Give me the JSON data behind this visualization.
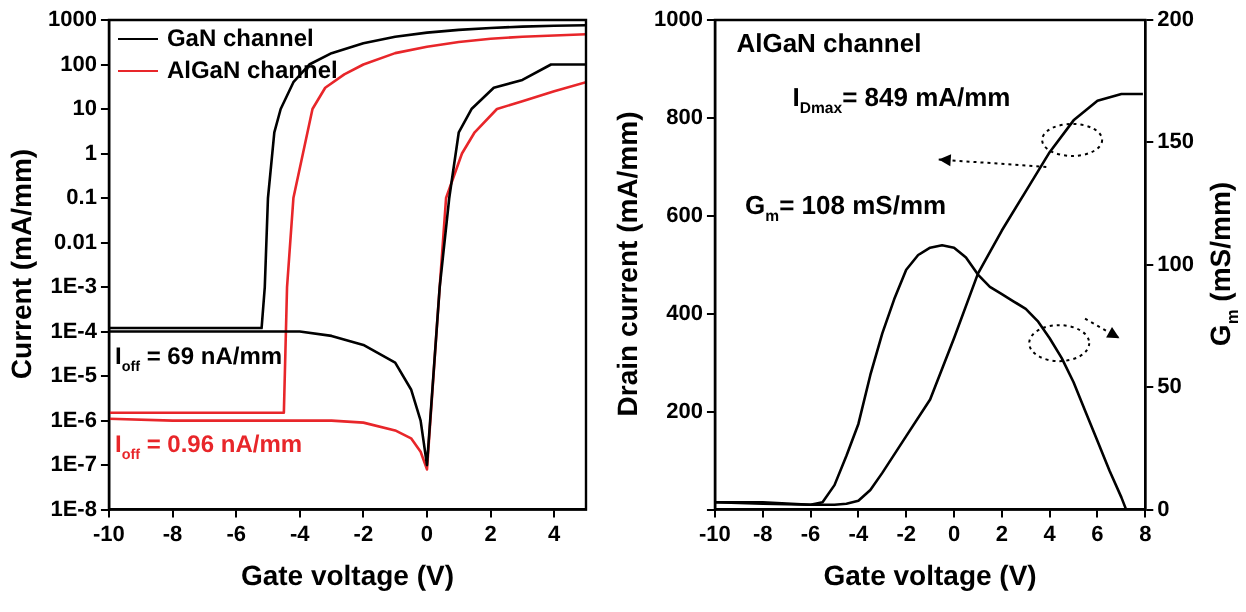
{
  "chart_data": [
    {
      "type": "line",
      "xlabel": "Gate voltage (V)",
      "ylabel": "Current (mA/mm)",
      "log": "y",
      "grid": false,
      "legend": "top left",
      "xlim": [
        -10,
        5
      ],
      "xticks": [
        -10,
        -8,
        -6,
        -4,
        -2,
        0,
        2,
        4
      ],
      "ylim": [
        1e-08,
        1000
      ],
      "yticks": [
        1000,
        100,
        10,
        1,
        0.1,
        0.01,
        {
          "value": 0.001,
          "label": "1E-3"
        },
        {
          "value": 0.0001,
          "label": "1E-4"
        },
        {
          "value": 1e-05,
          "label": "1E-5"
        },
        {
          "value": 1e-06,
          "label": "1E-6"
        },
        {
          "value": 1e-07,
          "label": "1E-7"
        },
        {
          "value": 1e-08,
          "label": "1E-8"
        }
      ],
      "series": [
        {
          "name": "GaN channel",
          "color": "#000000",
          "x": [
            -10,
            -8,
            -6,
            -5.2,
            -5.1,
            -5.0,
            -4.8,
            -4.6,
            -4.2,
            -3.7,
            -3,
            -2,
            -1,
            0,
            1,
            2,
            3,
            4,
            5
          ],
          "values": [
            0.00012,
            0.00012,
            0.00012,
            0.00012,
            0.001,
            0.1,
            3,
            10,
            40,
            100,
            180,
            300,
            420,
            520,
            600,
            660,
            710,
            740,
            760
          ]
        },
        {
          "color": "#000000",
          "x": [
            -10,
            -8,
            -6,
            -4,
            -3,
            -2,
            -1,
            -0.5,
            -0.2,
            0,
            0.4,
            0.7,
            1.0,
            1.4,
            2.1,
            3,
            3.9,
            5
          ],
          "values": [
            0.0001,
            0.0001,
            0.0001,
            0.0001,
            8e-05,
            5e-05,
            2e-05,
            5e-06,
            1e-06,
            1e-07,
            0.001,
            0.1,
            3,
            10,
            30,
            45,
            100,
            100
          ]
        },
        {
          "name": "AlGaN channel",
          "color": "#e8262a",
          "x": [
            -10,
            -8,
            -6,
            -4.5,
            -4.4,
            -4.2,
            -3.9,
            -3.6,
            -3.2,
            -2.6,
            -2,
            -1,
            0,
            1,
            2,
            3,
            4,
            5
          ],
          "values": [
            1.5e-06,
            1.5e-06,
            1.5e-06,
            1.5e-06,
            0.001,
            0.1,
            1,
            10,
            30,
            60,
            100,
            180,
            250,
            320,
            380,
            420,
            450,
            480
          ]
        },
        {
          "color": "#e8262a",
          "x": [
            -10,
            -8,
            -5,
            -3,
            -2,
            -1,
            -0.5,
            -0.2,
            0,
            0.3,
            0.6,
            1.1,
            1.5,
            2.2,
            3,
            4,
            5
          ],
          "values": [
            1.1e-06,
            1e-06,
            1e-06,
            1e-06,
            9e-07,
            6e-07,
            4e-07,
            2e-07,
            8e-08,
            0.0001,
            0.1,
            1,
            3,
            10,
            15,
            25,
            40
          ]
        }
      ],
      "annotations": [
        {
          "text": "I$_{off}$ = 69 nA/mm",
          "x": -10,
          "y": 0.0001
        },
        {
          "text": "I$_{off}$ = 0.96 nA/mm",
          "x": -10,
          "y": 1e-06
        }
      ]
    },
    {
      "type": "line",
      "xlabel": "Gate voltage (V)",
      "ylabel": "Drain current (mA/mm)",
      "y2label": "G$_{m}$ (mS/mm)",
      "grid": false,
      "legend": false,
      "xlim": [
        -10,
        8
      ],
      "xticks": [
        -10,
        -8,
        -6,
        -4,
        -2,
        0,
        2,
        4,
        6,
        8
      ],
      "ylim": [
        0,
        1000
      ],
      "yticks": [
        {
          "value": 0,
          "label": null
        },
        200,
        400,
        600,
        800,
        1000
      ],
      "y2lim": [
        0,
        200
      ],
      "y2ticks": [
        0,
        50,
        100,
        150,
        200
      ],
      "series": [
        {
          "color": "#000000",
          "x": [
            -10,
            -8,
            -6,
            -5,
            -4.5,
            -4,
            -3.5,
            -3,
            -2,
            -1,
            0,
            1,
            2,
            3,
            4,
            5,
            6,
            7,
            7.9
          ],
          "values": [
            15,
            12,
            10,
            10,
            12,
            18,
            40,
            75,
            150,
            225,
            350,
            482,
            570,
            650,
            730,
            795,
            835,
            849,
            849
          ]
        },
        {
          "color": "#000000",
          "axis": "y2",
          "x": [
            -10,
            -8,
            -6,
            -5.5,
            -5,
            -4.5,
            -4,
            -3.5,
            -3,
            -2.5,
            -2,
            -1.5,
            -1,
            -0.5,
            0,
            0.5,
            1,
            1.5,
            2,
            2.5,
            3,
            3.5,
            4,
            4.5,
            5,
            5.5,
            6,
            6.5,
            7,
            7.2
          ],
          "values": [
            3,
            3,
            2,
            3,
            10,
            22,
            35,
            55,
            72,
            86,
            98,
            104,
            107,
            108,
            107,
            103,
            96,
            91,
            88,
            85,
            82,
            77,
            70,
            62,
            52,
            40,
            28,
            16,
            5,
            0
          ]
        }
      ],
      "annotations": [
        "AlGaN channel",
        "I$_{Dmax}$= 849 mA/mm",
        "G$_{m}$= 108 mS/mm"
      ]
    }
  ]
}
